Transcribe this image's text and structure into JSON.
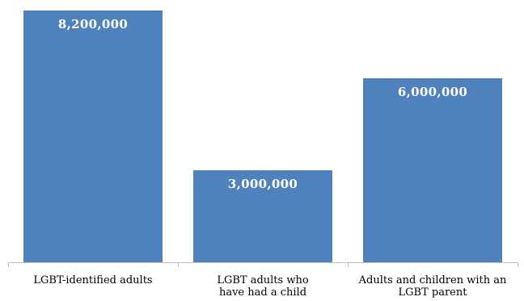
{
  "chart_data": {
    "type": "bar",
    "categories": [
      "LGBT-identified adults",
      "LGBT adults who\nhave had a child",
      "Adults and children with an\nLGBT parent"
    ],
    "values": [
      8200000,
      3000000,
      6000000
    ],
    "data_labels": [
      "8,200,000",
      "3,000,000",
      "6,000,000"
    ],
    "ylim": [
      0,
      9000000
    ],
    "grid": false,
    "legend": "none",
    "colors": {
      "bar": "#4f81bd",
      "axis": "#bfbfbf",
      "label_text": "#ffffff"
    }
  }
}
